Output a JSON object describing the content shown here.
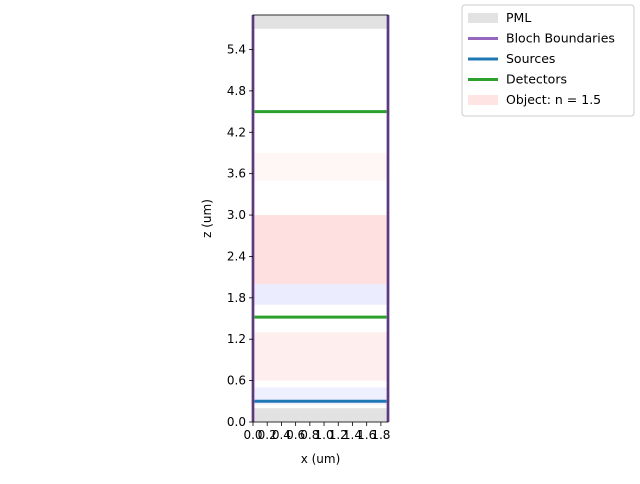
{
  "chart_data": {
    "type": "diagram",
    "xlabel": "x (um)",
    "ylabel": "z (um)",
    "xlim": [
      0.0,
      1.9
    ],
    "ylim": [
      0.0,
      5.9
    ],
    "xticks": [
      "0.0",
      "0.2",
      "0.4",
      "0.6",
      "0.8",
      "1.0",
      "1.2",
      "1.4",
      "1.6",
      "1.8"
    ],
    "yticks": [
      "0.0",
      "0.6",
      "1.2",
      "1.8",
      "2.4",
      "3.0",
      "3.6",
      "4.2",
      "4.8",
      "5.4"
    ],
    "legend": {
      "position": "upper-right-outside",
      "entries": [
        {
          "label": "PML",
          "color": "#e2e2e2",
          "kind": "patch"
        },
        {
          "label": "Bloch Boundaries",
          "color": "#9467bd",
          "kind": "line"
        },
        {
          "label": "Sources",
          "color": "#1f77b4",
          "kind": "line"
        },
        {
          "label": "Detectors",
          "color": "#2ca02c",
          "kind": "line"
        },
        {
          "label": "Object: n = 1.5",
          "color": "#ffe4e4",
          "kind": "patch"
        }
      ]
    },
    "pml_regions": [
      {
        "z0": 0.0,
        "z1": 0.2
      },
      {
        "z0": 5.7,
        "z1": 5.9
      }
    ],
    "bloch_boundaries_x": [
      0.0,
      1.9
    ],
    "sources_z": [
      0.3
    ],
    "detectors_z": [
      1.52,
      4.5
    ],
    "object_regions": [
      {
        "z0": 2.0,
        "z1": 3.0,
        "intensity": 1.0
      },
      {
        "z0": 0.6,
        "z1": 1.3,
        "intensity": 0.55
      }
    ],
    "field_tint_regions": [
      {
        "z0": 1.7,
        "z1": 2.0,
        "color": "#ececff"
      },
      {
        "z0": 0.25,
        "z1": 0.5,
        "color": "#eef0ff"
      },
      {
        "z0": 3.5,
        "z1": 3.9,
        "color": "#fff6f6"
      }
    ]
  }
}
